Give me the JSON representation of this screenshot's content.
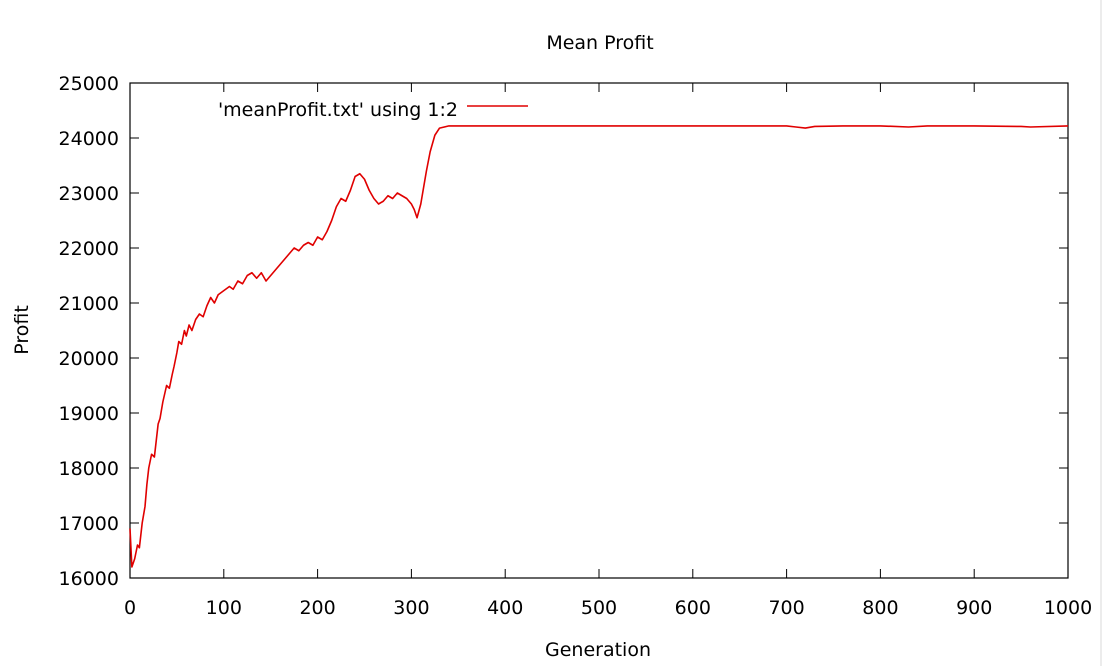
{
  "chart_data": {
    "type": "line",
    "title": "Mean Profit",
    "xlabel": "Generation",
    "ylabel": "Profit",
    "xlim": [
      0,
      1000
    ],
    "ylim": [
      16000,
      25000
    ],
    "xticks": [
      0,
      100,
      200,
      300,
      400,
      500,
      600,
      700,
      800,
      900,
      1000
    ],
    "yticks": [
      16000,
      17000,
      18000,
      19000,
      20000,
      21000,
      22000,
      23000,
      24000,
      25000
    ],
    "grid": false,
    "legend": "top-left",
    "series": [
      {
        "name": "'meanProfit.txt' using 1:2",
        "color": "#e00000",
        "points": [
          [
            0,
            16900
          ],
          [
            2,
            16200
          ],
          [
            5,
            16350
          ],
          [
            8,
            16600
          ],
          [
            10,
            16550
          ],
          [
            13,
            17000
          ],
          [
            16,
            17300
          ],
          [
            18,
            17700
          ],
          [
            20,
            18000
          ],
          [
            23,
            18250
          ],
          [
            26,
            18200
          ],
          [
            28,
            18500
          ],
          [
            30,
            18800
          ],
          [
            32,
            18900
          ],
          [
            35,
            19200
          ],
          [
            37,
            19350
          ],
          [
            39,
            19500
          ],
          [
            42,
            19450
          ],
          [
            45,
            19700
          ],
          [
            47,
            19850
          ],
          [
            50,
            20100
          ],
          [
            52,
            20300
          ],
          [
            55,
            20250
          ],
          [
            58,
            20500
          ],
          [
            60,
            20400
          ],
          [
            63,
            20600
          ],
          [
            66,
            20500
          ],
          [
            70,
            20700
          ],
          [
            74,
            20800
          ],
          [
            78,
            20750
          ],
          [
            82,
            20950
          ],
          [
            86,
            21100
          ],
          [
            90,
            21000
          ],
          [
            94,
            21150
          ],
          [
            98,
            21200
          ],
          [
            102,
            21250
          ],
          [
            106,
            21300
          ],
          [
            110,
            21250
          ],
          [
            115,
            21400
          ],
          [
            120,
            21350
          ],
          [
            125,
            21500
          ],
          [
            130,
            21550
          ],
          [
            135,
            21450
          ],
          [
            140,
            21550
          ],
          [
            145,
            21400
          ],
          [
            150,
            21500
          ],
          [
            155,
            21600
          ],
          [
            160,
            21700
          ],
          [
            165,
            21800
          ],
          [
            170,
            21900
          ],
          [
            175,
            22000
          ],
          [
            180,
            21950
          ],
          [
            185,
            22050
          ],
          [
            190,
            22100
          ],
          [
            195,
            22050
          ],
          [
            200,
            22200
          ],
          [
            205,
            22150
          ],
          [
            210,
            22300
          ],
          [
            215,
            22500
          ],
          [
            220,
            22750
          ],
          [
            225,
            22900
          ],
          [
            230,
            22850
          ],
          [
            235,
            23050
          ],
          [
            240,
            23300
          ],
          [
            245,
            23350
          ],
          [
            250,
            23250
          ],
          [
            255,
            23050
          ],
          [
            260,
            22900
          ],
          [
            265,
            22800
          ],
          [
            270,
            22850
          ],
          [
            275,
            22950
          ],
          [
            280,
            22900
          ],
          [
            285,
            23000
          ],
          [
            290,
            22950
          ],
          [
            295,
            22900
          ],
          [
            300,
            22800
          ],
          [
            303,
            22700
          ],
          [
            306,
            22550
          ],
          [
            310,
            22800
          ],
          [
            313,
            23100
          ],
          [
            316,
            23400
          ],
          [
            320,
            23750
          ],
          [
            325,
            24050
          ],
          [
            330,
            24180
          ],
          [
            340,
            24220
          ],
          [
            360,
            24220
          ],
          [
            400,
            24220
          ],
          [
            500,
            24220
          ],
          [
            600,
            24220
          ],
          [
            700,
            24220
          ],
          [
            710,
            24200
          ],
          [
            720,
            24180
          ],
          [
            730,
            24210
          ],
          [
            760,
            24220
          ],
          [
            800,
            24220
          ],
          [
            830,
            24200
          ],
          [
            850,
            24220
          ],
          [
            900,
            24220
          ],
          [
            950,
            24210
          ],
          [
            960,
            24200
          ],
          [
            1000,
            24220
          ]
        ]
      }
    ]
  }
}
